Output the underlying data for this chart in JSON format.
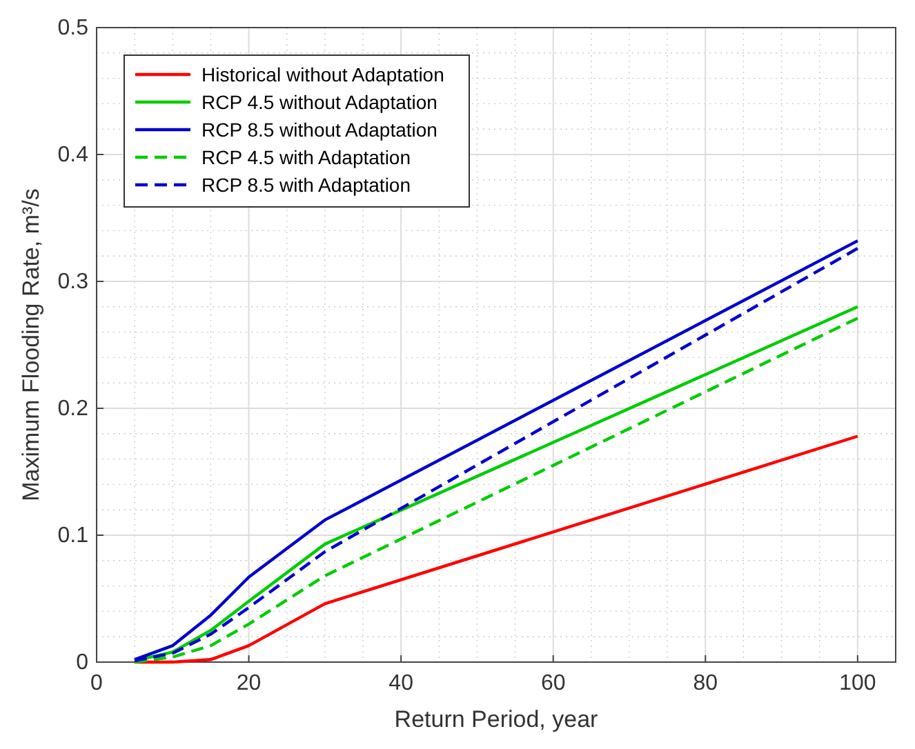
{
  "chart_data": {
    "type": "line",
    "xlabel": "Return Period, year",
    "ylabel": "Maximum Flooding Rate, m³/s",
    "x": [
      5,
      10,
      15,
      20,
      30,
      100
    ],
    "series": [
      {
        "name": "Historical without Adaptation",
        "color": "#ff0000",
        "values": [
          0,
          0,
          0.002,
          0.013,
          0.046,
          0.178
        ]
      },
      {
        "name": "RCP 4.5 without Adaptation",
        "color": "#00cc00",
        "values": [
          0.001,
          0.008,
          0.025,
          0.048,
          0.093,
          0.28
        ]
      },
      {
        "name": "RCP 8.5 without Adaptation",
        "color": "#0000cc",
        "values": [
          0.002,
          0.013,
          0.037,
          0.067,
          0.112,
          0.332
        ]
      },
      {
        "name": "RCP 4.5 with Adaptation",
        "color": "#00cc00",
        "values": [
          0,
          0.004,
          0.013,
          0.03,
          0.068,
          0.271
        ],
        "line_style": "dashed"
      },
      {
        "name": "RCP 8.5 with Adaptation",
        "color": "#0000cc",
        "values": [
          0.001,
          0.007,
          0.022,
          0.043,
          0.087,
          0.326
        ],
        "line_style": "dashed"
      }
    ],
    "xlim": [
      0,
      105
    ],
    "xticks": [
      0,
      20,
      40,
      60,
      80,
      100
    ],
    "ylim": [
      0,
      0.5
    ],
    "yticks": [
      0,
      0.1,
      0.2,
      0.3,
      0.4,
      0.5
    ],
    "grid": true,
    "legend": "top left",
    "marker": "none",
    "line_style": "solid"
  }
}
